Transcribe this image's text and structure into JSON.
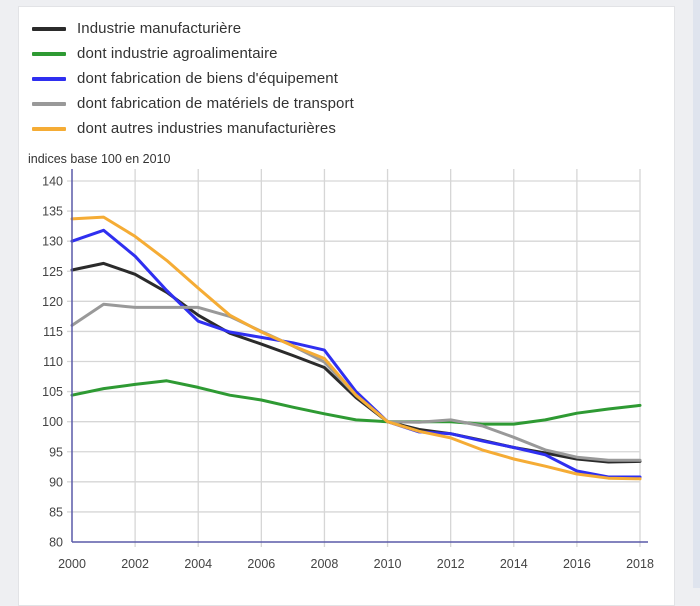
{
  "chart_data": {
    "type": "line",
    "title": "",
    "ylabel": "indices base 100 en 2010",
    "xlabel": "",
    "x": [
      2000,
      2001,
      2002,
      2003,
      2004,
      2005,
      2006,
      2007,
      2008,
      2009,
      2010,
      2011,
      2012,
      2013,
      2014,
      2015,
      2016,
      2017,
      2018
    ],
    "xlim": [
      2000,
      2018
    ],
    "ylim": [
      80,
      140
    ],
    "x_ticks": [
      "2000",
      "2002",
      "2004",
      "2006",
      "2008",
      "2010",
      "2012",
      "2014",
      "2016",
      "2018"
    ],
    "y_ticks": [
      "80",
      "85",
      "90",
      "95",
      "100",
      "105",
      "110",
      "115",
      "120",
      "125",
      "130",
      "135",
      "140"
    ],
    "grid": true,
    "legend_position": "top-left",
    "series": [
      {
        "name": "Industrie manufacturière",
        "color": "#2b2b2b",
        "values": [
          125.2,
          126.3,
          124.5,
          121.5,
          117.7,
          114.7,
          112.9,
          111.0,
          109.0,
          104.0,
          100.0,
          98.7,
          98.0,
          96.9,
          95.7,
          94.8,
          93.8,
          93.3,
          93.4
        ]
      },
      {
        "name": "dont industrie agroalimentaire",
        "color": "#2e9a33",
        "values": [
          104.4,
          105.5,
          106.2,
          106.8,
          105.7,
          104.4,
          103.6,
          102.4,
          101.3,
          100.3,
          100.0,
          100.0,
          100.0,
          99.6,
          99.6,
          100.3,
          101.4,
          102.1,
          102.7
        ]
      },
      {
        "name": "dont fabrication de biens d'équipement",
        "color": "#2f2ff0",
        "values": [
          130.0,
          131.8,
          127.5,
          121.8,
          116.7,
          114.9,
          114.0,
          113.1,
          111.9,
          105.0,
          100.0,
          98.3,
          98.0,
          96.8,
          95.7,
          94.5,
          91.8,
          90.8,
          90.8
        ]
      },
      {
        "name": "dont fabrication de matériels de transport",
        "color": "#999999",
        "values": [
          116.0,
          119.5,
          119.0,
          119.0,
          119.0,
          117.5,
          115.0,
          112.6,
          109.9,
          104.4,
          100.0,
          99.9,
          100.3,
          99.3,
          97.4,
          95.3,
          94.1,
          93.6,
          93.6
        ]
      },
      {
        "name": "dont autres industries manufacturières",
        "color": "#f5ac35",
        "values": [
          133.7,
          134.0,
          130.8,
          126.8,
          122.2,
          117.7,
          114.9,
          112.6,
          110.5,
          104.4,
          100.0,
          98.4,
          97.3,
          95.3,
          93.8,
          92.6,
          91.3,
          90.6,
          90.5
        ]
      }
    ]
  },
  "legend": {
    "items": [
      {
        "label": "Industrie manufacturière",
        "color": "#2b2b2b"
      },
      {
        "label": "dont industrie agroalimentaire",
        "color": "#2e9a33"
      },
      {
        "label": "dont fabrication de biens d'équipement",
        "color": "#2f2ff0"
      },
      {
        "label": "dont fabrication de matériels de transport",
        "color": "#999999"
      },
      {
        "label": "dont autres industries manufacturières",
        "color": "#f5ac35"
      }
    ]
  },
  "unit_label": "indices base 100 en 2010",
  "colors": {
    "axis": "#5a5aa8",
    "grid": "#d6d6d6"
  }
}
